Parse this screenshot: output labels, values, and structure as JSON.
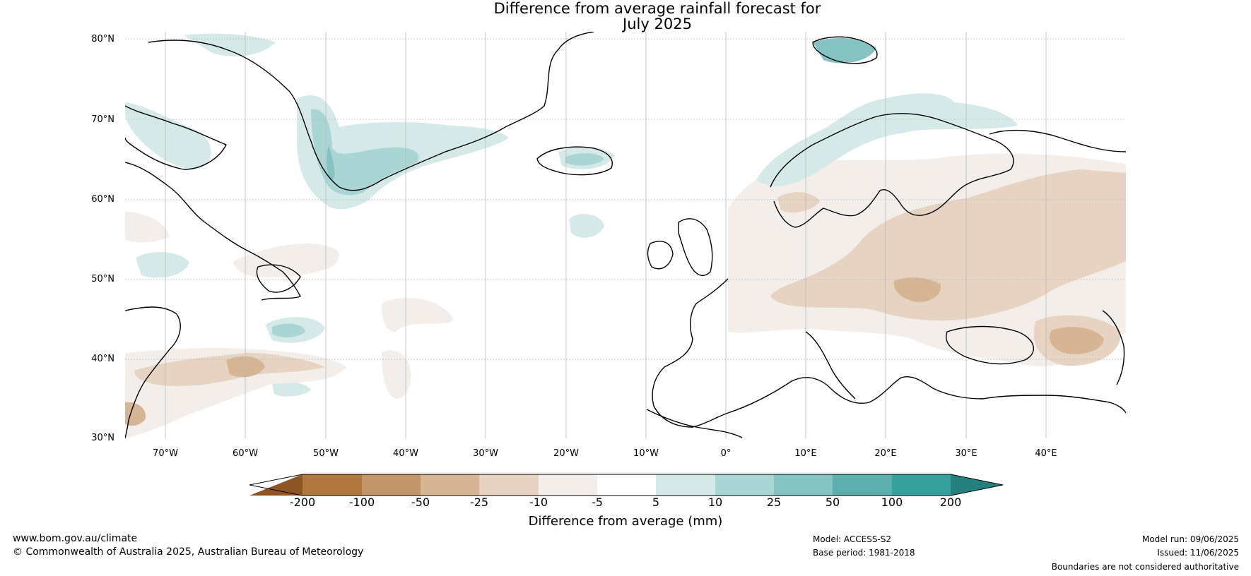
{
  "map": {
    "title_line1": "Difference from average rainfall forecast for",
    "title_line2": "July 2025",
    "lat_labels": [
      "80°N",
      "70°N",
      "60°N",
      "50°N",
      "40°N",
      "30°N"
    ],
    "lat_values": [
      80,
      70,
      60,
      50,
      40,
      30
    ],
    "lon_labels": [
      "70°W",
      "60°W",
      "50°W",
      "40°W",
      "30°W",
      "20°W",
      "10°W",
      "0°",
      "10°E",
      "20°E",
      "30°E",
      "40°E"
    ],
    "lon_values": [
      -70,
      -60,
      -50,
      -40,
      -30,
      -20,
      -10,
      0,
      10,
      20,
      30,
      40
    ],
    "extent": {
      "lon_min": -75,
      "lon_max": 50,
      "lat_min": 30,
      "lat_max": 81
    }
  },
  "colorbar": {
    "title": "Difference from average (mm)",
    "ticks": [
      "-200",
      "-100",
      "-50",
      "-25",
      "-10",
      "-5",
      "5",
      "10",
      "25",
      "50",
      "100",
      "200"
    ],
    "colors": [
      "#8e5524",
      "#b0773f",
      "#c3956a",
      "#d6b595",
      "#e6d3c2",
      "#f4eeea",
      "#ffffff",
      "#d6e9e9",
      "#a9d5d5",
      "#84c3c1",
      "#5bb0ad",
      "#36a09c",
      "#23807c"
    ]
  },
  "footer": {
    "website": "www.bom.gov.au/climate",
    "copyright": "© Commonwealth of Australia 2025, Australian Bureau of Meteorology",
    "model": "Model: ACCESS-S2",
    "base_period": "Base period: 1981-2018",
    "model_run": "Model run: 09/06/2025",
    "issued": "Issued: 11/06/2025",
    "disclaimer": "Boundaries are not considered authoritative"
  }
}
